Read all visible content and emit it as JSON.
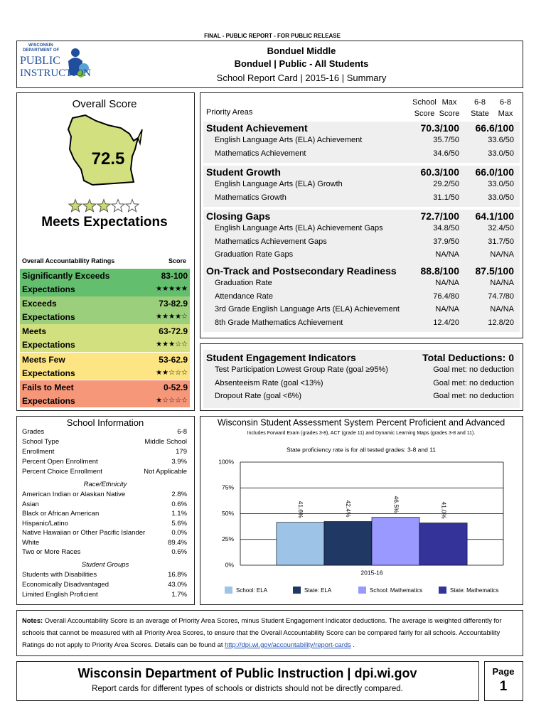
{
  "header": {
    "release": "FINAL - PUBLIC REPORT - FOR PUBLIC RELEASE",
    "logo": [
      "WISCONSIN",
      "DEPARTMENT OF",
      "PUBLIC",
      "INSTRUCTION"
    ],
    "school": "Bonduel Middle",
    "district": "Bonduel | Public - All Students",
    "report": "School Report Card | 2015-16 | Summary"
  },
  "overall": {
    "title": "Overall Score",
    "score": "72.5",
    "stars": 3,
    "rating": "Meets Expectations",
    "table_header": [
      "Overall Accountability Ratings",
      "Score"
    ],
    "ratings": [
      {
        "name": [
          "Significantly Exceeds",
          "Expectations"
        ],
        "range": "83-100",
        "stars": "★★★★★",
        "color": "#63be6e"
      },
      {
        "name": [
          "Exceeds",
          "Expectations"
        ],
        "range": "73-82.9",
        "stars": "★★★★☆",
        "color": "#9ccf7b"
      },
      {
        "name": [
          "Meets",
          "Expectations"
        ],
        "range": "63-72.9",
        "stars": "★★★☆☆",
        "color": "#d3e07f"
      },
      {
        "name": [
          "Meets Few",
          "Expectations"
        ],
        "range": "53-62.9",
        "stars": "★★☆☆☆",
        "color": "#fde583"
      },
      {
        "name": [
          "Fails to Meet",
          "Expectations"
        ],
        "range": "0-52.9",
        "stars": "★☆☆☆☆",
        "color": "#f7977a"
      }
    ]
  },
  "priority": {
    "label": "Priority Areas",
    "columns": [
      [
        "School",
        "Score"
      ],
      [
        "Max",
        "Score"
      ],
      [
        "6-8",
        "State"
      ],
      [
        "6-8",
        "Max"
      ]
    ],
    "sections": [
      {
        "name": "Student Achievement",
        "score": "70.3/100",
        "state": "66.6/100",
        "items": [
          [
            "English Language Arts (ELA) Achievement",
            "35.7/50",
            "33.6/50"
          ],
          [
            "Mathematics Achievement",
            "34.6/50",
            "33.0/50"
          ]
        ]
      },
      {
        "name": "Student Growth",
        "score": "60.3/100",
        "state": "66.0/100",
        "items": [
          [
            "English Language Arts (ELA) Growth",
            "29.2/50",
            "33.0/50"
          ],
          [
            "Mathematics Growth",
            "31.1/50",
            "33.0/50"
          ]
        ]
      },
      {
        "name": "Closing Gaps",
        "score": "72.7/100",
        "state": "64.1/100",
        "items": [
          [
            "English Language Arts (ELA) Achievement Gaps",
            "34.8/50",
            "32.4/50"
          ],
          [
            "Mathematics Achievement Gaps",
            "37.9/50",
            "31.7/50"
          ],
          [
            "Graduation Rate Gaps",
            "NA/NA",
            "NA/NA"
          ]
        ]
      },
      {
        "name": "On-Track and Postsecondary Readiness",
        "score": "88.8/100",
        "state": "87.5/100",
        "items": [
          [
            "Graduation Rate",
            "NA/NA",
            "NA/NA"
          ],
          [
            "Attendance Rate",
            "76.4/80",
            "74.7/80"
          ],
          [
            "3rd Grade English Language Arts (ELA) Achievement",
            "NA/NA",
            "NA/NA"
          ],
          [
            "8th Grade Mathematics Achievement",
            "12.4/20",
            "12.8/20"
          ]
        ]
      }
    ]
  },
  "engagement": {
    "title": "Student Engagement Indicators",
    "total": "Total Deductions: 0",
    "rows": [
      [
        "Test Participation Lowest Group Rate (goal ≥95%)",
        "Goal met: no deduction"
      ],
      [
        "Absenteeism Rate (goal <13%)",
        "Goal met: no deduction"
      ],
      [
        "Dropout Rate (goal <6%)",
        "Goal met: no deduction"
      ]
    ]
  },
  "school_info": {
    "title": "School Information",
    "rows": [
      [
        "Grades",
        "6-8"
      ],
      [
        "School Type",
        "Middle School"
      ],
      [
        "Enrollment",
        "179"
      ],
      [
        "Percent Open Enrollment",
        "3.9%"
      ],
      [
        "Percent Choice Enrollment",
        "Not Applicable"
      ]
    ],
    "race_heading": "Race/Ethnicity",
    "race": [
      [
        "American Indian or Alaskan Native",
        "2.8%"
      ],
      [
        "Asian",
        "0.6%"
      ],
      [
        "Black or African American",
        "1.1%"
      ],
      [
        "Hispanic/Latino",
        "5.6%"
      ],
      [
        "Native Hawaiian or Other Pacific Islander",
        "0.0%"
      ],
      [
        "White",
        "89.4%"
      ],
      [
        "Two or More Races",
        "0.6%"
      ]
    ],
    "groups_heading": "Student Groups",
    "groups": [
      [
        "Students with Disabilities",
        "16.8%"
      ],
      [
        "Economically Disadvantaged",
        "43.0%"
      ],
      [
        "Limited English Proficient",
        "1.7%"
      ]
    ]
  },
  "chart_data": {
    "type": "bar",
    "title": "Wisconsin Student Assessment System Percent Proficient and Advanced",
    "subtitle": "Includes Forward Exam (grades 3-8), ACT (grade 11) and Dynamic Learning Maps (grades 3-8 and 11).",
    "note": "State proficiency rate is for all tested grades: 3-8 and 11",
    "categories": [
      "2015-16"
    ],
    "series": [
      {
        "name": "School: ELA",
        "color": "#9dc3e6",
        "values": [
          41.6
        ],
        "value_labels": [
          "41.6%"
        ]
      },
      {
        "name": "State: ELA",
        "color": "#1f3864",
        "values": [
          42.4
        ],
        "value_labels": [
          "42.4%"
        ]
      },
      {
        "name": "School: Mathematics",
        "color": "#9999ff",
        "values": [
          46.5
        ],
        "value_labels": [
          "46.5%"
        ]
      },
      {
        "name": "State: Mathematics",
        "color": "#333399",
        "values": [
          41.0
        ],
        "value_labels": [
          "41.0%"
        ]
      }
    ],
    "ylim": [
      0,
      100
    ],
    "yticks": [
      {
        "value": 0,
        "label": "0%"
      },
      {
        "value": 25,
        "label": "25%"
      },
      {
        "value": 50,
        "label": "50%"
      },
      {
        "value": 75,
        "label": "75%"
      },
      {
        "value": 100,
        "label": "100%"
      }
    ],
    "grid": true,
    "legend": "bottom"
  },
  "notes": {
    "label": "Notes:",
    "text": "Overall Accountability Score is an average of Priority Area Scores, minus Student Engagement Indicator deductions. The average is weighted differently for schools that cannot be measured with all Priority Area Scores, to ensure that the Overall Accountability Score can be compared fairly for all schools. Accountability Ratings do not apply to Priority Area Scores. Details can be found at",
    "link": "http://dpi.wi.gov/accountability/report-cards",
    "end": "."
  },
  "footer": {
    "title": "Wisconsin Department of Public Instruction | dpi.wi.gov",
    "subtitle": "Report cards for different types of schools or districts should not be directly compared.",
    "page_label": "Page",
    "page": "1"
  }
}
